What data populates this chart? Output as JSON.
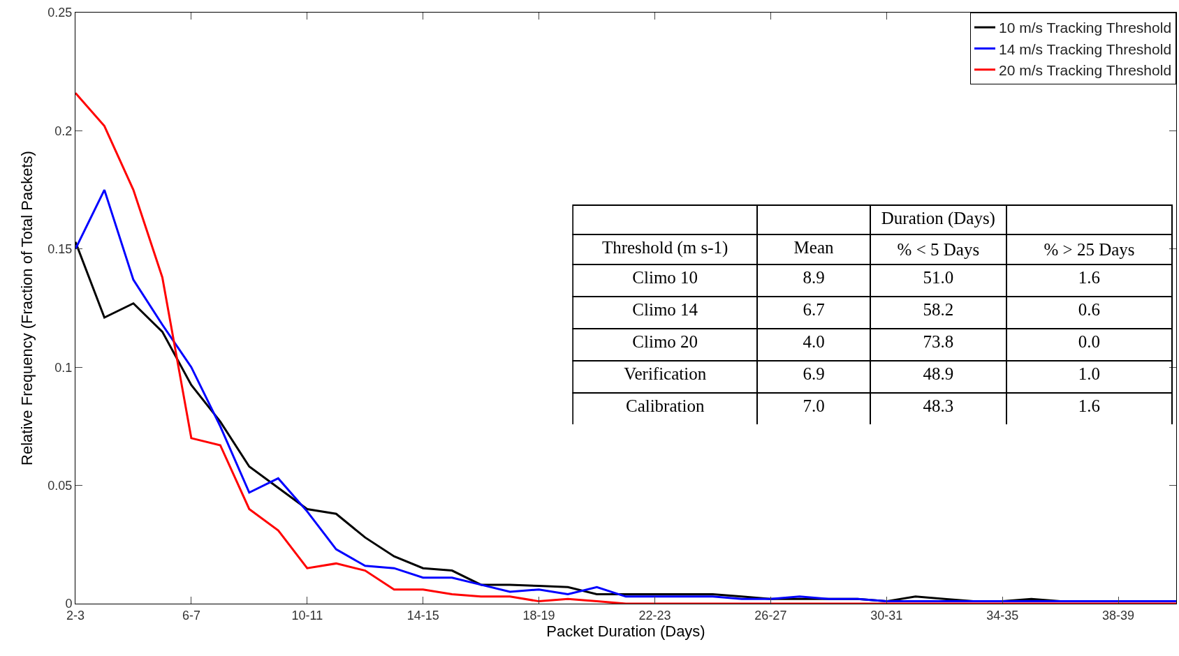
{
  "chart_data": {
    "type": "line",
    "xlabel": "Packet Duration (Days)",
    "ylabel": "Relative Frequency (Fraction of Total Packets)",
    "categories": [
      "2-3",
      null,
      null,
      null,
      "6-7",
      null,
      null,
      null,
      "10-11",
      null,
      null,
      null,
      "14-15",
      null,
      null,
      null,
      "18-19",
      null,
      null,
      null,
      "22-23",
      null,
      null,
      null,
      "26-27",
      null,
      null,
      null,
      "30-31",
      null,
      null,
      null,
      "34-35",
      null,
      null,
      null,
      "38-39",
      null,
      null
    ],
    "series": [
      {
        "name": "10 m/s Tracking Threshold",
        "color": "#000000",
        "values": [
          0.153,
          0.121,
          0.127,
          0.115,
          0.0925,
          0.077,
          0.058,
          0.049,
          0.04,
          0.038,
          0.028,
          0.02,
          0.015,
          0.014,
          0.008,
          0.008,
          0.0075,
          0.007,
          0.004,
          0.004,
          0.004,
          0.004,
          0.004,
          0.003,
          0.002,
          0.002,
          0.002,
          0.002,
          0.001,
          0.003,
          0.002,
          0.001,
          0.001,
          0.002,
          0.001,
          0.001,
          0.001,
          0.001,
          0.001
        ]
      },
      {
        "name": "14 m/s Tracking Threshold",
        "color": "#0000ff",
        "values": [
          0.15,
          0.175,
          0.137,
          0.118,
          0.1,
          0.075,
          0.047,
          0.053,
          0.039,
          0.023,
          0.016,
          0.015,
          0.011,
          0.011,
          0.008,
          0.005,
          0.006,
          0.004,
          0.007,
          0.003,
          0.003,
          0.003,
          0.003,
          0.002,
          0.002,
          0.003,
          0.002,
          0.002,
          0.001,
          0.001,
          0.001,
          0.001,
          0.001,
          0.001,
          0.001,
          0.001,
          0.001,
          0.001,
          0.001
        ]
      },
      {
        "name": "20 m/s Tracking Threshold",
        "color": "#ff0000",
        "values": [
          0.216,
          0.202,
          0.175,
          0.138,
          0.07,
          0.067,
          0.04,
          0.031,
          0.015,
          0.017,
          0.014,
          0.006,
          0.006,
          0.004,
          0.003,
          0.003,
          0.001,
          0.002,
          0.001,
          0,
          0,
          0,
          0,
          0,
          0,
          0,
          0,
          0,
          0,
          0,
          0,
          0,
          0,
          0,
          0,
          0,
          0,
          0,
          0
        ]
      }
    ],
    "ylim": [
      0,
      0.25
    ],
    "yticks": [
      0,
      0.05,
      0.1,
      0.15,
      0.2,
      0.25
    ],
    "legend": "top right",
    "marker": "none",
    "line_style": "solid",
    "annotations": [
      "Duration (Days)",
      "Threshold (m s-1)",
      "Mean",
      "% < 5 Days",
      "% > 25 Days",
      "Climo 10",
      "8.9",
      "51.0",
      "1.6",
      "Climo 14",
      "6.7",
      "58.2",
      "0.6",
      "Climo 20",
      "4.0",
      "73.8",
      "0.0",
      "Verification",
      "6.9",
      "48.9",
      "1.0",
      "Calibration",
      "7.0",
      "48.3",
      "1.6"
    ]
  }
}
